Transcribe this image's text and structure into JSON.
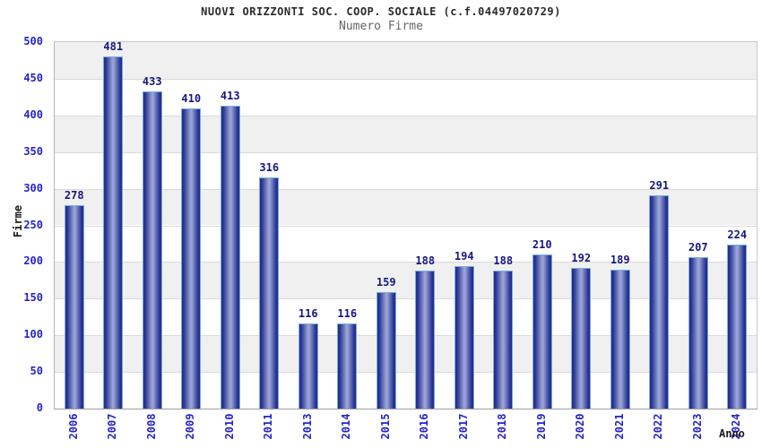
{
  "chart_data": {
    "type": "bar",
    "title": "NUOVI ORIZZONTI SOC. COOP. SOCIALE (c.f.04497020729)",
    "subtitle": "Numero Firme",
    "xlabel": "Anno",
    "ylabel": "Firme",
    "categories": [
      "2006",
      "2007",
      "2008",
      "2009",
      "2010",
      "2011",
      "2013",
      "2014",
      "2015",
      "2016",
      "2017",
      "2018",
      "2019",
      "2020",
      "2021",
      "2022",
      "2023",
      "2024"
    ],
    "values": [
      278,
      481,
      433,
      410,
      413,
      316,
      116,
      116,
      159,
      188,
      194,
      188,
      210,
      192,
      189,
      291,
      207,
      224
    ],
    "ylim": [
      0,
      500
    ],
    "yticks": [
      0,
      50,
      100,
      150,
      200,
      250,
      300,
      350,
      400,
      450,
      500
    ],
    "grid": "horizontal-alternating-bands",
    "legend": "none",
    "colors": {
      "bar_edge_dark": "#1f2a88",
      "bar_mid": "#2e3a97",
      "bar_center_light": "#9aa3d6",
      "bar_border": "#79aede",
      "axis_tick_blue": "#2424cc",
      "value_label_navy": "#171780",
      "band_gray": "#f0f0f0",
      "band_white": "#ffffff",
      "grid_line": "#dadada",
      "title_color": "#2b2b2b",
      "subtitle_color": "#666666",
      "axis_title_black": "#1a1a1a"
    }
  }
}
